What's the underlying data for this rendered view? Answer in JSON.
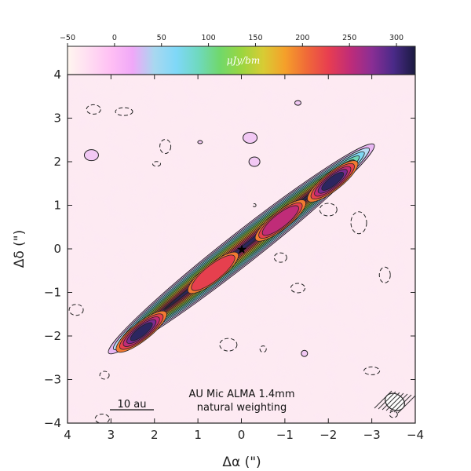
{
  "chart_data": {
    "type": "heatmap",
    "title": "",
    "xlabel": "Δα (\")",
    "ylabel": "Δδ (\")",
    "xlim": [
      4,
      -4
    ],
    "ylim": [
      -4,
      4
    ],
    "xticks": [
      "4",
      "3",
      "2",
      "1",
      "0",
      "−1",
      "−2",
      "−3",
      "−4"
    ],
    "yticks": [
      "4",
      "3",
      "2",
      "1",
      "0",
      "−1",
      "−2",
      "−3",
      "−4"
    ],
    "colorbar": {
      "unit_label": "μJy/bm",
      "range": [
        -50,
        320
      ],
      "ticks": [
        "−50",
        "0",
        "50",
        "100",
        "150",
        "200",
        "250",
        "300"
      ],
      "tick_values": [
        -50,
        0,
        50,
        100,
        150,
        200,
        250,
        300
      ],
      "colors": [
        "#fff6ef",
        "#ffdcf2",
        "#ffbff4",
        "#f0a8f8",
        "#a8d8f0",
        "#7fd8f8",
        "#6fd9c0",
        "#70d86c",
        "#9ad640",
        "#d8cc34",
        "#f5a02a",
        "#f06a38",
        "#e83e50",
        "#c02c78",
        "#8a2e94",
        "#4a2a88",
        "#1a1a40"
      ]
    },
    "disk": {
      "position_angle_deg": 128.5,
      "star_position": [
        0,
        0
      ],
      "peaks": [
        {
          "x": 2.3,
          "y": -1.9,
          "value": 320
        },
        {
          "x": -2.1,
          "y": 1.55,
          "value": 310
        },
        {
          "x": 0.65,
          "y": -0.55,
          "value": 220
        },
        {
          "x": -0.9,
          "y": 0.65,
          "value": 240
        }
      ]
    },
    "annotations": {
      "title_line1": "AU Mic ALMA 1.4mm",
      "title_line2": "natural weighting",
      "scalebar_label": "10 au",
      "star_marker": "★"
    },
    "grid": false
  }
}
